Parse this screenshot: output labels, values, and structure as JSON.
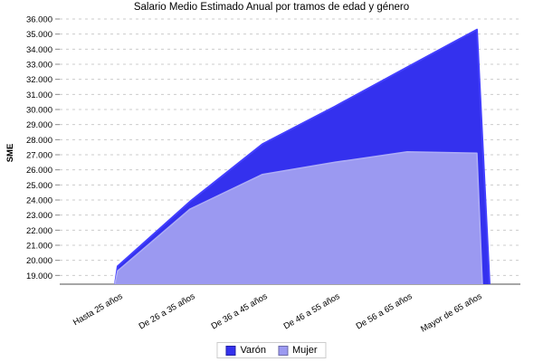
{
  "chart_data": {
    "type": "area",
    "title": "Salario Medio Estimado Anual por tramos de edad y género",
    "categories": [
      "Hasta 25 años",
      "De 26 a 35 años",
      "De 36 a 45 años",
      "De 46 a 55 años",
      "De 56 a 65 años",
      "Mayor de 65 años"
    ],
    "series": [
      {
        "name": "Varón",
        "color": "#3431ee",
        "edge_color": "#433fff",
        "values": [
          19600,
          23900,
          27700,
          30200,
          32800,
          35300
        ]
      },
      {
        "name": "Mujer",
        "color": "#9b99f1",
        "edge_color": "#aeadf6",
        "values": [
          19300,
          23400,
          25700,
          26500,
          27200,
          27100
        ]
      }
    ],
    "xlabel": "",
    "ylabel": "SME",
    "ylim": [
      19000,
      36000
    ],
    "ytick_step": 1000,
    "ytick_labels": [
      "19.000",
      "20.000",
      "21.000",
      "22.000",
      "23.000",
      "24.000",
      "25.000",
      "26.000",
      "27.000",
      "28.000",
      "29.000",
      "30.000",
      "31.000",
      "32.000",
      "33.000",
      "34.000",
      "35.000",
      "36.000"
    ],
    "grid": "horizontal-dashed",
    "legend_position": "bottom"
  },
  "colors": {
    "background": "#ffffff",
    "grid": "#cccccc",
    "axis": "#a6a6a6",
    "tick": "#888888",
    "text": "#000000",
    "legend_border": "#cccccc"
  }
}
